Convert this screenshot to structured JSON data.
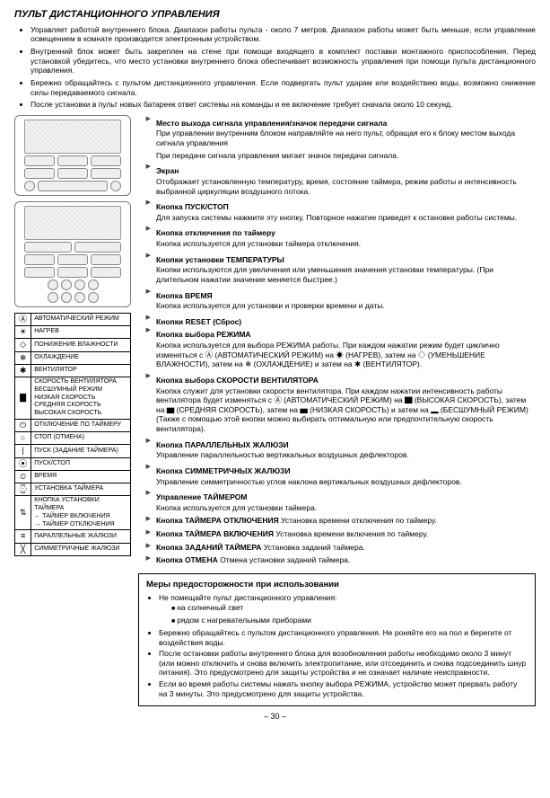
{
  "title": "ПУЛЬТ ДИСТАНЦИОННОГО УПРАВЛЕНИЯ",
  "intro_bullets": [
    "Управляет работой внутреннего блока. Диапазон работы пульта - около 7 метров. Диапазон работы может быть меньше, если управление освещением в комнате производится электронным устройством.",
    "Внутренний блок может быть закреплен на стене при помощи входящего в комплект поставки монтажного приспособления. Перед установкой убедитесь, что место установки внутреннего блока обеспечивает возможность управления при помощи пульта дистанционного управления.",
    "Бережно обращайтесь с пультом дистанционного управления. Если подвергать пульт ударам или воздействию воды, возможно снижение силы передаваемого сигнала.",
    "После установки в пульт новых батареек ответ системы на команды и ее включение требует сначала около 10 секунд."
  ],
  "sections": [
    {
      "h": "Место выхода сигнала управления/значок передачи сигнала",
      "lines": [
        "При управлении внутренним блоком направляйте на него пульт, обращая его к блоку местом выхода сигнала управления",
        "При передаче сигнала управления мигает значок передачи сигнала."
      ]
    },
    {
      "h": "Экран",
      "lines": [
        "Отображает установленную температуру, время, состояние таймера, режим работы и интенсивность выбранной циркуляции воздушного потока."
      ]
    },
    {
      "h": "Кнопка ПУСК/СТОП",
      "lines": [
        "Для запуска системы нажмите эту кнопку. Повторное нажатие приведет к остановке работы системы."
      ]
    },
    {
      "h": "Кнопка отключения по таймеру",
      "lines": [
        "Кнопка используется для установки таймера отключения."
      ]
    },
    {
      "h": "Кнопки установки ТЕМПЕРАТУРЫ",
      "lines": [
        "Кнопки используются для увеличения или уменьшения значения установки температуры. (При длительном нажатии значение меняется быстрее.)"
      ]
    },
    {
      "h": "Кнопка ВРЕМЯ",
      "lines": [
        "Кнопка используется для установки и проверки времени и даты."
      ]
    },
    {
      "h": "Кнопки RESET (Сброс)",
      "lines": []
    },
    {
      "h": "Кнопка выбора РЕЖИМА",
      "lines": [
        "Кнопка используется для выбора РЕЖИМА работы. При каждом нажатии режим будет циклично изменяться с Ⓐ (АВТОМАТИЧЕСКИЙ РЕЖИМ) на ☀ (НАГРЕВ), затем на ◇ (УМЕНЬШЕНИЕ ВЛАЖНОСТИ), затем на ❄ (ОХЛАЖДЕНИЕ) и затем на ✱ (ВЕНТИЛЯТОР)."
      ]
    },
    {
      "h": "Кнопка выбора СКОРОСТИ ВЕНТИЛЯТОРА",
      "lines": [
        "Кнопка служит для установки скорости вентилятора. При каждом нажатии интенсивность работы вентилятора будет изменяться с Ⓐ (АВТОМАТИЧЕСКИЙ РЕЖИМ) на ▇ (ВЫСОКАЯ СКОРОСТЬ), затем на ▆ (СРЕДНЯЯ СКОРОСТЬ), затем на ▅ (НИЗКАЯ СКОРОСТЬ) и затем на ▂ (БЕСШУМНЫЙ РЕЖИМ) (Также с помощью этой кнопки можно выбирать оптимальную или предпочтительную скорость вентилятора)."
      ]
    },
    {
      "h": "Кнопка ПАРАЛЛЕЛЬНЫХ ЖАЛЮЗИ",
      "lines": [
        "Управление параллельностью вертикальных воздушных дефлекторов."
      ]
    },
    {
      "h": "Кнопка СИММЕТРИЧНЫХ ЖАЛЮЗИ",
      "lines": [
        "Управление симметричностью углов наклона вертикальных воздушных дефлекторов."
      ]
    },
    {
      "h": "Управление ТАЙМЕРОМ",
      "lines": [
        "Кнопка используется для установки таймера."
      ]
    },
    {
      "h_inline": "Кнопка ТАЙМЕРА ОТКЛЮЧЕНИЯ",
      "tail": "Установка времени отключения по таймеру."
    },
    {
      "h_inline": "Кнопка ТАЙМЕРА ВКЛЮЧЕНИЯ",
      "tail": "Установка времени включения по таймеру."
    },
    {
      "h_inline": "Кнопка ЗАДАНИЙ ТАЙМЕРА",
      "tail": "Установка заданий таймера."
    },
    {
      "h_inline": "Кнопка ОТМЕНА",
      "tail": "Отмена установки заданий таймера."
    }
  ],
  "legend": [
    {
      "icon": "Ⓐ",
      "label": "АВТОМАТИЧЕСКИЙ РЕЖИМ"
    },
    {
      "icon": "☀",
      "label": "НАГРЕВ"
    },
    {
      "icon": "◇",
      "label": "ПОНИЖЕНИЕ ВЛАЖНОСТИ"
    },
    {
      "icon": "❄",
      "label": "ОХЛАЖДЕНИЕ"
    },
    {
      "icon": "✱",
      "label": "ВЕНТИЛЯТОР"
    },
    {
      "icon": "▇",
      "label": "СКОРОСТЬ ВЕНТИЛЯТОРА\nБЕСШУМНЫЙ РЕЖИМ\nНИЗКАЯ СКОРОСТЬ\nСРЕДНЯЯ СКОРОСТЬ\nВЫСОКАЯ СКОРОСТЬ"
    },
    {
      "icon": "⏻",
      "label": "ОТКЛЮЧЕНИЕ ПО ТАЙМЕРУ"
    },
    {
      "icon": "○",
      "label": "СТОП (ОТМЕНА)"
    },
    {
      "icon": "|",
      "label": "ПУСК (ЗАДАНИЕ ТАЙМЕРА)"
    },
    {
      "icon": "⦿",
      "label": "ПУСК/СТОП"
    },
    {
      "icon": "⏲",
      "label": "ВРЕМЯ"
    },
    {
      "icon": "⌚",
      "label": "УСТАНОВКА ТАЙМЕРА"
    },
    {
      "icon": "⇅",
      "label": "КНОПКА УСТАНОВКИ ТАЙМЕРА\n← ТАЙМЕР ВКЛЮЧЕНИЯ\n→ ТАЙМЕР ОТКЛЮЧЕНИЯ"
    },
    {
      "icon": "≡",
      "label": "ПАРАЛЛЕЛЬНЫЕ ЖАЛЮЗИ"
    },
    {
      "icon": "╳",
      "label": "СИММЕТРИЧНЫЕ ЖАЛЮЗИ"
    }
  ],
  "precautions": {
    "title": "Меры предосторожности при использовании",
    "items": [
      {
        "text": "Не помещайте пульт дистанционного управления:",
        "sub": [
          "на солнечный свет",
          "рядом с нагревательными приборами"
        ]
      },
      {
        "text": "Бережно обращайтесь с пультом дистанционного управления. Не роняйте его на пол и берегите от воздействия воды."
      },
      {
        "text": "После остановки работы внутреннего блока для возобновления работы необходимо около 3 минут (или можно отключить и снова включить электропитание, или отсоединить и снова подсоединить шнур питания). Это предусмотрено для защиты устройства и не означает наличие неисправности."
      },
      {
        "text": "Если во время работы системы нажать кнопку выбора РЕЖИМА, устройство может прервать работу на 3 минуты. Это предусмотрено для защиты устройства."
      }
    ]
  },
  "page_number": "– 30 –"
}
